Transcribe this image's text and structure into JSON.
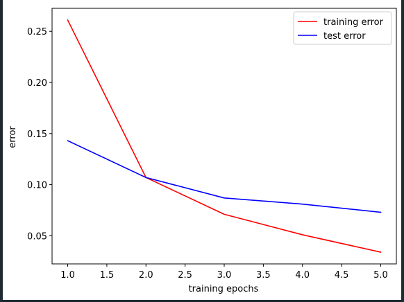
{
  "chart_data": {
    "type": "line",
    "title": "",
    "xlabel": "training epochs",
    "ylabel": "error",
    "x": [
      1.0,
      2.0,
      3.0,
      4.0,
      5.0
    ],
    "xlim": [
      0.8,
      5.2
    ],
    "ylim": [
      0.0225,
      0.2725
    ],
    "xticks": [
      1.0,
      1.5,
      2.0,
      2.5,
      3.0,
      3.5,
      4.0,
      4.5,
      5.0
    ],
    "xtick_labels": [
      "1.0",
      "1.5",
      "2.0",
      "2.5",
      "3.0",
      "3.5",
      "4.0",
      "4.5",
      "5.0"
    ],
    "yticks": [
      0.05,
      0.1,
      0.15,
      0.2,
      0.25
    ],
    "ytick_labels": [
      "0.05",
      "0.10",
      "0.15",
      "0.20",
      "0.25"
    ],
    "grid": false,
    "legend_position": "top-right",
    "series": [
      {
        "name": "training error",
        "color": "#ff0000",
        "values": [
          0.261,
          0.107,
          0.071,
          0.051,
          0.034
        ]
      },
      {
        "name": "test error",
        "color": "#0000ff",
        "values": [
          0.143,
          0.107,
          0.087,
          0.081,
          0.073
        ]
      }
    ]
  }
}
